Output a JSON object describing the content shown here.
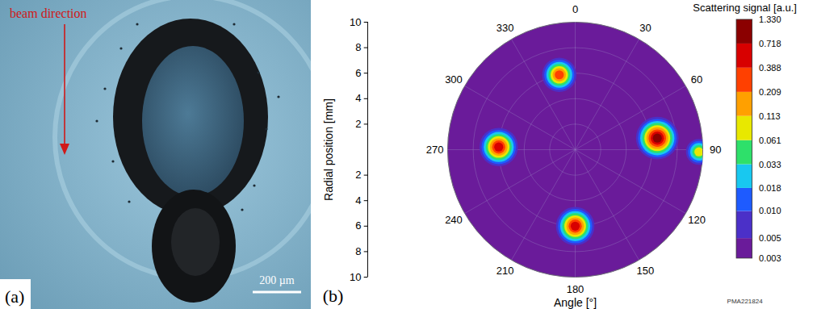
{
  "photo": {
    "label": "(a)",
    "annotation": "beam direction",
    "scale_bar": "200 µm"
  },
  "chart_data": {
    "type": "polar_heatmap",
    "label": "(b)",
    "x_label": "Angle [°]",
    "y_label": "Radial position [mm]",
    "xlim": [
      0,
      360
    ],
    "xticks": [
      0,
      30,
      60,
      90,
      120,
      150,
      180,
      210,
      240,
      270,
      300,
      330
    ],
    "ylim": [
      0,
      10
    ],
    "yticks": [
      2,
      4,
      6,
      8,
      10
    ],
    "grid": true,
    "annotation": "PMA221824",
    "background": 0.003,
    "spots": [
      {
        "angle": 348,
        "radius": 6,
        "peak": 0.209
      },
      {
        "angle": 272,
        "radius": 6,
        "peak": 0.388
      },
      {
        "angle": 180,
        "radius": 6,
        "peak": 0.388
      },
      {
        "angle": 82,
        "radius": 6.5,
        "peak": 0.718
      },
      {
        "angle": 91,
        "radius": 9.7,
        "peak": 0.061
      }
    ],
    "color_bar": {
      "title": "Scattering signal [a.u.]",
      "log": true,
      "range": [
        0.003,
        1.33
      ],
      "ticks": [
        0.003,
        0.005,
        {
          "value": 0.01,
          "label": "0.010"
        },
        0.018,
        0.033,
        0.061,
        0.113,
        0.209,
        0.388,
        0.718,
        {
          "value": 1.33,
          "label": "1.330"
        }
      ],
      "colors": [
        "#6a1b9a",
        "#4b30c8",
        "#1e5bff",
        "#18c8f0",
        "#2ee06a",
        "#e8e800",
        "#ffa000",
        "#ff4000",
        "#d80000",
        "#8b0000"
      ]
    }
  }
}
